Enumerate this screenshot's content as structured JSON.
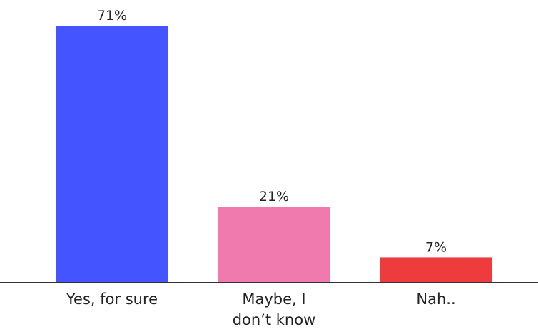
{
  "chart_data": {
    "type": "bar",
    "categories": [
      "Yes, for sure",
      "Maybe, I don’t know",
      "Nah.."
    ],
    "category_lines": [
      [
        "Yes, for sure"
      ],
      [
        "Maybe, I",
        "don’t know"
      ],
      [
        "Nah.."
      ]
    ],
    "values": [
      71,
      21,
      7
    ],
    "value_labels": [
      "71%",
      "21%",
      "7%"
    ],
    "colors": [
      "#4455FF",
      "#F07AAE",
      "#EE3B3E"
    ],
    "axis_color": "#333333",
    "ylim": [
      0,
      71
    ],
    "grid": false,
    "legend": "none"
  }
}
